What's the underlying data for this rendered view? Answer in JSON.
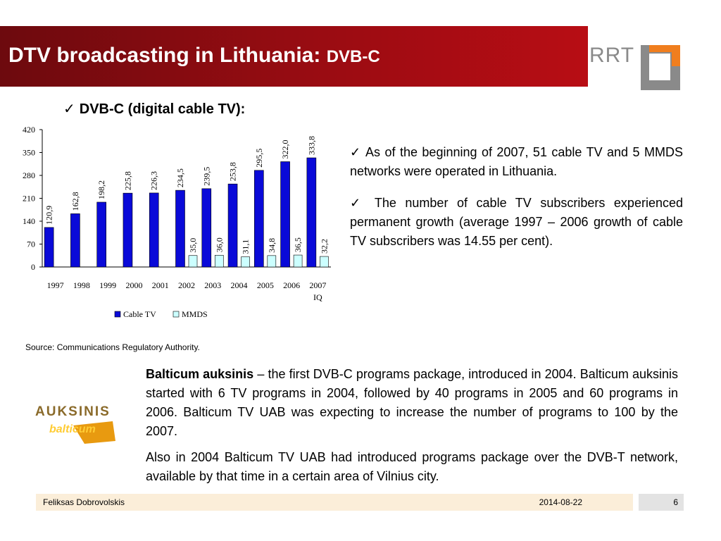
{
  "header": {
    "title": "DTV broadcasting in Lithuania:",
    "subtitle": "DVB-C",
    "logo_text": "RRT"
  },
  "chart_heading": {
    "check": "✓",
    "text": "DVB-C (digital cable TV):"
  },
  "chart_data": {
    "type": "bar",
    "categories": [
      "1997",
      "1998",
      "1999",
      "2000",
      "2001",
      "2002",
      "2003",
      "2004",
      "2005",
      "2006",
      "2007 IQ"
    ],
    "ylim": [
      0,
      420
    ],
    "yticks": [
      0,
      70,
      140,
      210,
      280,
      350,
      420
    ],
    "series": [
      {
        "name": "Cable TV",
        "color": "#0a0ad8",
        "values": [
          120.9,
          162.8,
          198.2,
          225.8,
          226.3,
          234.5,
          239.5,
          253.8,
          295.5,
          322.0,
          333.8
        ],
        "labels": [
          "120,9",
          "162,8",
          "198,2",
          "225,8",
          "226,3",
          "234,5",
          "239,5",
          "253,8",
          "295,5",
          "322,0",
          "333,8"
        ]
      },
      {
        "name": "MMDS",
        "color": "#ccffff",
        "values": [
          null,
          null,
          null,
          null,
          null,
          35.0,
          36.0,
          31.1,
          34.8,
          36.5,
          32.2
        ],
        "labels": [
          "",
          "",
          "",
          "",
          "",
          "35,0",
          "36,0",
          "31,1",
          "34,8",
          "36,5",
          "32,2"
        ]
      }
    ],
    "legend_position": "bottom",
    "grid": false
  },
  "source": "Source: Communications Regulatory Authority.",
  "bullets": [
    "✓   As of the beginning of 2007, 51 cable TV and 5 MMDS networks were operated in Lithuania.",
    "✓ The number of cable TV subscribers experienced permanent growth (average 1997 – 2006 growth of cable TV subscribers was 14.55 per cent)."
  ],
  "balticum_logo": {
    "line1": "AUKSINIS",
    "line2": "balticum"
  },
  "description": {
    "bold": "Balticum auksinis",
    "p1_rest": " – the first DVB-C programs package, introduced in 2004.  Balticum auksinis started with 6 TV programs in 2004, followed by 40 programs in 2005 and 60 programs in 2006. Balticum TV UAB was expecting to increase the number of programs to 100 by the 2007.",
    "p2": "Also in 2004 Balticum TV UAB had introduced programs package over the DVB-T network, available by that time in a certain area of Vilnius city."
  },
  "footer": {
    "author": "Feliksas Dobrovolskis",
    "date": "2014-08-22",
    "page": "6"
  },
  "colors": {
    "title_bar": "#9a0c12",
    "footer_bg": "#fbeed9",
    "page_box_bg": "#e3e3e3"
  }
}
